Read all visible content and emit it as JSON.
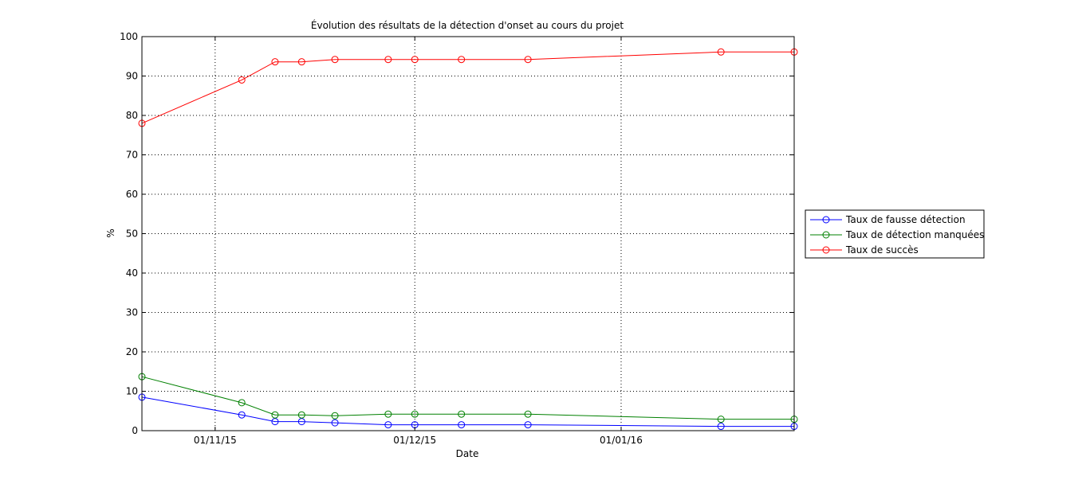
{
  "chart_data": {
    "type": "line",
    "title": "Évolution des résultats de la détection d'onset au cours du projet",
    "xlabel": "Date",
    "ylabel": "%",
    "x": [
      "2015-10-21",
      "2015-11-05",
      "2015-11-10",
      "2015-11-14",
      "2015-11-19",
      "2015-11-27",
      "2015-12-01",
      "2015-12-08",
      "2015-12-18",
      "2016-01-16",
      "2016-01-27"
    ],
    "xlim": [
      "2015-10-21",
      "2016-01-27"
    ],
    "xticks": [
      {
        "date": "2015-11-01",
        "label": "01/11/15"
      },
      {
        "date": "2015-12-01",
        "label": "01/12/15"
      },
      {
        "date": "2016-01-01",
        "label": "01/01/16"
      }
    ],
    "ylim": [
      0,
      100
    ],
    "yticks": [
      0,
      10,
      20,
      30,
      40,
      50,
      60,
      70,
      80,
      90,
      100
    ],
    "grid": true,
    "legend_position": "right",
    "series": [
      {
        "name": "Taux de fausse détection",
        "color": "#0000ff",
        "values": [
          8.5,
          4.0,
          2.3,
          2.3,
          2.0,
          1.5,
          1.5,
          1.5,
          1.5,
          1.1,
          1.1
        ]
      },
      {
        "name": "Taux de détection manquées",
        "color": "#008000",
        "values": [
          13.7,
          7.1,
          4.0,
          4.0,
          3.8,
          4.2,
          4.2,
          4.2,
          4.2,
          2.9,
          2.9
        ]
      },
      {
        "name": "Taux de succès",
        "color": "#ff0000",
        "values": [
          78.0,
          89.0,
          93.6,
          93.6,
          94.2,
          94.2,
          94.2,
          94.2,
          94.2,
          96.1,
          96.1
        ]
      }
    ]
  }
}
